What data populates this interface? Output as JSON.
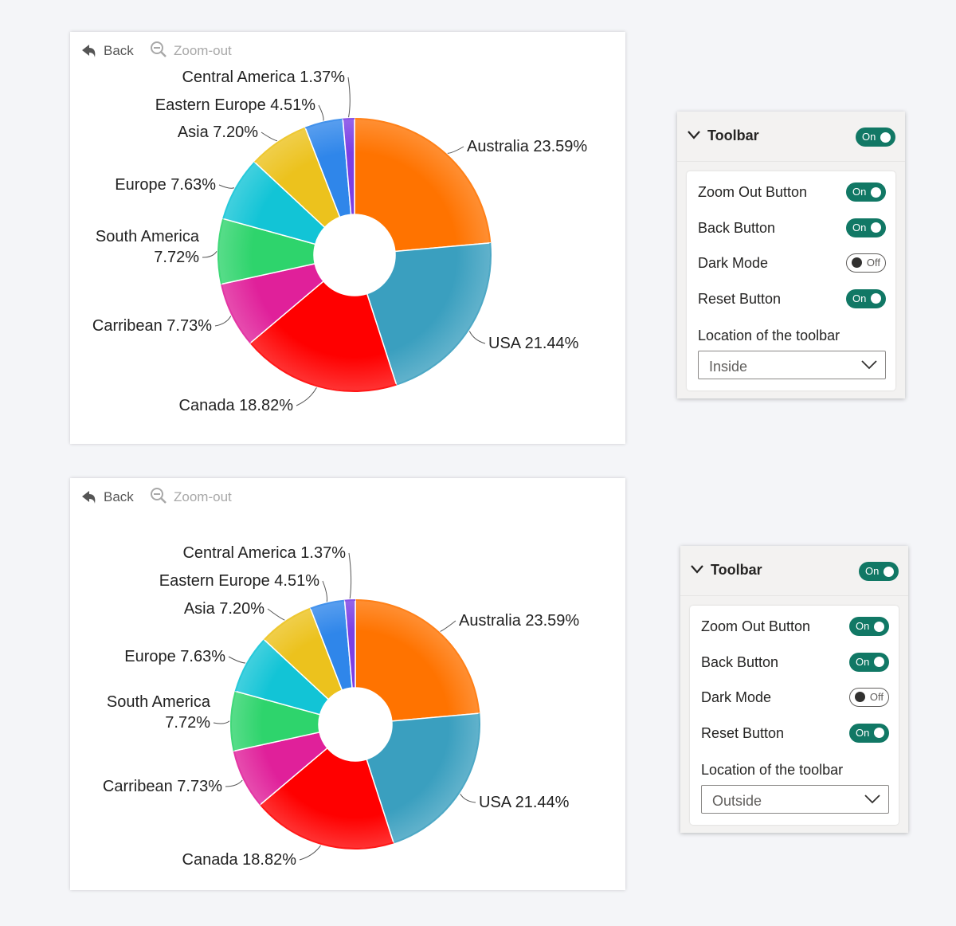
{
  "toolbar_buttons": {
    "back_label": "Back",
    "zoom_label": "Zoom-out"
  },
  "chart_data": [
    {
      "type": "pie",
      "categories": [
        "Australia",
        "USA",
        "Canada",
        "Carribean",
        "South America",
        "Europe",
        "Asia",
        "Eastern Europe",
        "Central America"
      ],
      "values": [
        23.59,
        21.44,
        18.82,
        7.73,
        7.72,
        7.63,
        7.2,
        4.51,
        1.37
      ],
      "labels": [
        "Australia 23.59%",
        "USA 21.44%",
        "Canada 18.82%",
        "Carribean 7.73%",
        "South America 7.72%",
        "Europe 7.63%",
        "Asia 7.20%",
        "Eastern Europe 4.51%",
        "Central America 1.37%"
      ],
      "colors": [
        "#ff7300",
        "#3a9fbf",
        "#ff0000",
        "#e0209a",
        "#2ed46c",
        "#12c4d6",
        "#ecc21d",
        "#2f86ea",
        "#7b3fe4"
      ]
    },
    {
      "type": "pie",
      "categories": [
        "Australia",
        "USA",
        "Canada",
        "Carribean",
        "South America",
        "Europe",
        "Asia",
        "Eastern Europe",
        "Central America"
      ],
      "values": [
        23.59,
        21.44,
        18.82,
        7.73,
        7.72,
        7.63,
        7.2,
        4.51,
        1.37
      ],
      "labels": [
        "Australia 23.59%",
        "USA 21.44%",
        "Canada 18.82%",
        "Carribean 7.73%",
        "South America 7.72%",
        "Europe 7.63%",
        "Asia 7.20%",
        "Eastern Europe 4.51%",
        "Central America 1.37%"
      ],
      "colors": [
        "#ff7300",
        "#3a9fbf",
        "#ff0000",
        "#e0209a",
        "#2ed46c",
        "#12c4d6",
        "#ecc21d",
        "#2f86ea",
        "#7b3fe4"
      ]
    }
  ],
  "panels": [
    {
      "title": "Toolbar",
      "toggle": "On",
      "rows": [
        {
          "label": "Zoom Out Button",
          "state": "On"
        },
        {
          "label": "Back Button",
          "state": "On"
        },
        {
          "label": "Dark Mode",
          "state": "Off"
        },
        {
          "label": "Reset Button",
          "state": "On"
        }
      ],
      "location_label": "Location of the toolbar",
      "location_value": "Inside"
    },
    {
      "title": "Toolbar",
      "toggle": "On",
      "rows": [
        {
          "label": "Zoom Out Button",
          "state": "On"
        },
        {
          "label": "Back Button",
          "state": "On"
        },
        {
          "label": "Dark Mode",
          "state": "Off"
        },
        {
          "label": "Reset Button",
          "state": "On"
        }
      ],
      "location_label": "Location of the toolbar",
      "location_value": "Outside"
    }
  ]
}
